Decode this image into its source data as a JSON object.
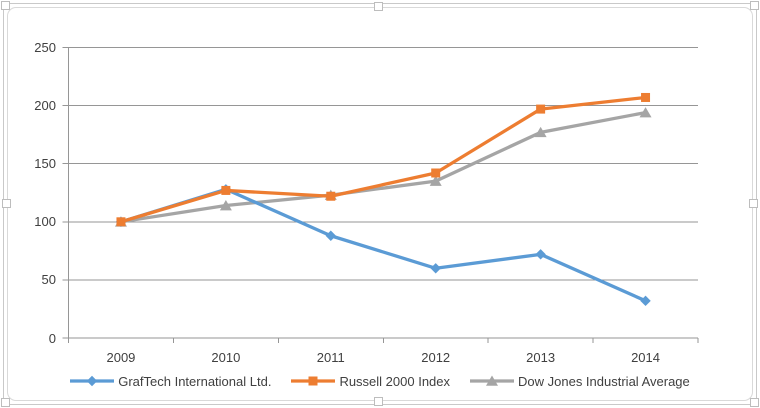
{
  "chart_data": {
    "type": "line",
    "title": "",
    "categories": [
      "2009",
      "2010",
      "2011",
      "2012",
      "2013",
      "2014"
    ],
    "series": [
      {
        "name": "GrafTech International Ltd.",
        "color": "#5B9BD5",
        "marker": "diamond",
        "values": [
          100,
          128,
          88,
          60,
          72,
          32
        ]
      },
      {
        "name": "Russell 2000 Index",
        "color": "#ED7D31",
        "marker": "square",
        "values": [
          100,
          127,
          122,
          142,
          197,
          207
        ]
      },
      {
        "name": "Dow Jones Industrial Average",
        "color": "#A5A5A5",
        "marker": "triangle",
        "values": [
          100,
          114,
          123,
          135,
          177,
          194
        ]
      }
    ],
    "y_ticks": [
      250,
      200,
      150,
      100,
      50,
      0
    ],
    "ylim": [
      0,
      250
    ],
    "grid": true,
    "legend_position": "bottom",
    "plot_order": [
      2,
      0,
      1
    ],
    "gridline_color": "#969696",
    "axis_color": "#969696",
    "label_color": "#404040",
    "background_color": "#ffffff"
  }
}
